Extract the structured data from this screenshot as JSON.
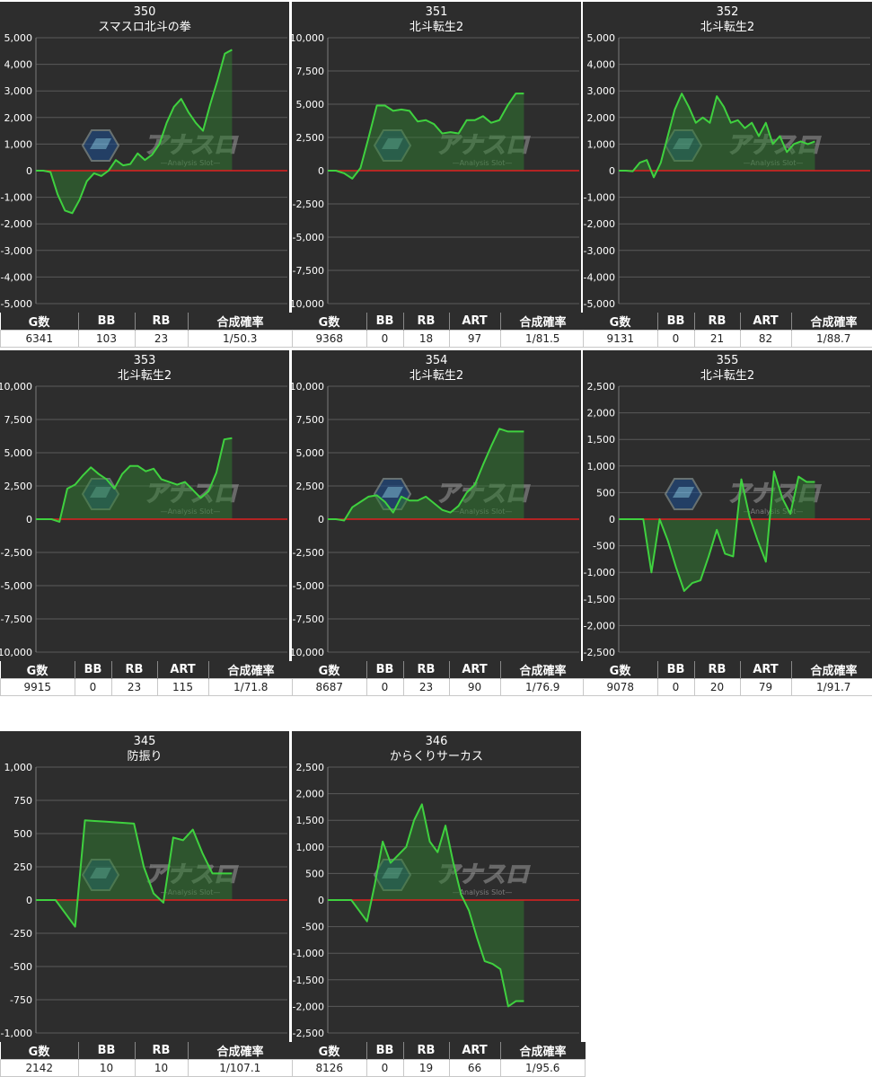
{
  "colors": {
    "background": "#2d2d2d",
    "line": "#3fd13f",
    "area": "#2f7d2f",
    "zero_line": "#e02020",
    "grid": "#5a5a5a",
    "text": "#ffffff"
  },
  "watermark": {
    "text": "アナスロ",
    "subtext": "—Analysis Slot—"
  },
  "chart_data": [
    {
      "type": "area",
      "number": "350",
      "title": "スマスロ北斗の拳",
      "ylim": [
        -5000,
        5000
      ],
      "ticks": [
        "5,000",
        "4,000",
        "3,000",
        "2,000",
        "1,000",
        "0",
        "-1,000",
        "-2,000",
        "-3,000",
        "-4,000",
        "-5,000"
      ],
      "values": [
        0,
        0,
        -50,
        -900,
        -1500,
        -1600,
        -1100,
        -400,
        -100,
        -200,
        0,
        400,
        200,
        250,
        650,
        400,
        600,
        1000,
        1800,
        2400,
        2700,
        2200,
        1800,
        1500,
        2500,
        3400,
        4400,
        4550
      ],
      "stats_headers": [
        "G数",
        "BB",
        "RB",
        "合成確率"
      ],
      "stats_values": [
        "6341",
        "103",
        "23",
        "1/50.3"
      ]
    },
    {
      "type": "area",
      "number": "351",
      "title": "北斗転生2",
      "ylim": [
        -10000,
        10000
      ],
      "ticks": [
        "10,000",
        "7,500",
        "5,000",
        "2,500",
        "0",
        "-2,500",
        "-5,000",
        "-7,500",
        "-10,000"
      ],
      "values": [
        0,
        0,
        -200,
        -600,
        200,
        2500,
        4900,
        4900,
        4500,
        4600,
        4500,
        3700,
        3800,
        3500,
        2800,
        2900,
        2800,
        3800,
        3800,
        4100,
        3600,
        3800,
        4900,
        5800,
        5800
      ],
      "stats_headers": [
        "G数",
        "BB",
        "RB",
        "ART",
        "合成確率"
      ],
      "stats_values": [
        "9368",
        "0",
        "18",
        "97",
        "1/81.5"
      ]
    },
    {
      "type": "area",
      "number": "352",
      "title": "北斗転生2",
      "ylim": [
        -5000,
        5000
      ],
      "ticks": [
        "5,000",
        "4,000",
        "3,000",
        "2,000",
        "1,000",
        "0",
        "-1,000",
        "-2,000",
        "-3,000",
        "-4,000",
        "-5,000"
      ],
      "values": [
        0,
        0,
        -20,
        300,
        400,
        -250,
        300,
        1300,
        2300,
        2900,
        2400,
        1800,
        2000,
        1800,
        2800,
        2400,
        1800,
        1900,
        1600,
        1800,
        1300,
        1800,
        1000,
        1300,
        700,
        1000,
        1100,
        1000,
        1100
      ],
      "stats_headers": [
        "G数",
        "BB",
        "RB",
        "ART",
        "合成確率"
      ],
      "stats_values": [
        "9131",
        "0",
        "21",
        "82",
        "1/88.7"
      ]
    },
    {
      "type": "area",
      "number": "353",
      "title": "北斗転生2",
      "ylim": [
        -10000,
        10000
      ],
      "ticks": [
        "10,000",
        "7,500",
        "5,000",
        "2,500",
        "0",
        "-2,500",
        "-5,000",
        "-7,500",
        "-10,000"
      ],
      "values": [
        0,
        0,
        0,
        -200,
        2300,
        2600,
        3300,
        3900,
        3400,
        3000,
        2300,
        3400,
        4000,
        4000,
        3600,
        3800,
        3000,
        2800,
        2600,
        2800,
        2200,
        1600,
        2100,
        3500,
        6000,
        6100
      ],
      "stats_headers": [
        "G数",
        "BB",
        "RB",
        "ART",
        "合成確率"
      ],
      "stats_values": [
        "9915",
        "0",
        "23",
        "115",
        "1/71.8"
      ]
    },
    {
      "type": "area",
      "number": "354",
      "title": "北斗転生2",
      "ylim": [
        -10000,
        10000
      ],
      "ticks": [
        "10,000",
        "7,500",
        "5,000",
        "2,500",
        "0",
        "-2,500",
        "-5,000",
        "-7,500",
        "-10,000"
      ],
      "values": [
        0,
        0,
        -100,
        900,
        1300,
        1700,
        1800,
        1300,
        500,
        1700,
        1400,
        1400,
        1700,
        1200,
        700,
        500,
        1000,
        2000,
        2600,
        4100,
        5500,
        6800,
        6600,
        6600,
        6600
      ],
      "stats_headers": [
        "G数",
        "BB",
        "RB",
        "ART",
        "合成確率"
      ],
      "stats_values": [
        "8687",
        "0",
        "23",
        "90",
        "1/76.9"
      ]
    },
    {
      "type": "area",
      "number": "355",
      "title": "北斗転生2",
      "ylim": [
        -2500,
        2500
      ],
      "ticks": [
        "2,500",
        "2,000",
        "1,500",
        "1,000",
        "500",
        "0",
        "-500",
        "-1,000",
        "-1,500",
        "-2,000",
        "-2,500"
      ],
      "values": [
        0,
        0,
        0,
        0,
        -1000,
        0,
        -400,
        -900,
        -1350,
        -1200,
        -1150,
        -700,
        -200,
        -650,
        -700,
        750,
        50,
        -400,
        -800,
        900,
        400,
        100,
        800,
        700,
        700
      ],
      "stats_headers": [
        "G数",
        "BB",
        "RB",
        "ART",
        "合成確率"
      ],
      "stats_values": [
        "9078",
        "0",
        "20",
        "79",
        "1/91.7"
      ]
    },
    {
      "type": "area",
      "number": "345",
      "title": "防振り",
      "ylim": [
        -1000,
        1000
      ],
      "ticks": [
        "1,000",
        "750",
        "500",
        "250",
        "0",
        "-250",
        "-500",
        "-750",
        "-1,000"
      ],
      "values": [
        0,
        0,
        0,
        -100,
        -200,
        600,
        595,
        590,
        585,
        580,
        575,
        250,
        50,
        -20,
        470,
        450,
        530,
        350,
        200,
        200,
        200
      ],
      "stats_headers": [
        "G数",
        "BB",
        "RB",
        "合成確率"
      ],
      "stats_values": [
        "2142",
        "10",
        "10",
        "1/107.1"
      ]
    },
    {
      "type": "area",
      "number": "346",
      "title": "からくりサーカス",
      "ylim": [
        -2500,
        2500
      ],
      "ticks": [
        "2,500",
        "2,000",
        "1,500",
        "1,000",
        "500",
        "0",
        "-500",
        "-1,000",
        "-1,500",
        "-2,000",
        "-2,500"
      ],
      "values": [
        0,
        0,
        0,
        0,
        -200,
        -400,
        300,
        1100,
        700,
        850,
        1000,
        1500,
        1800,
        1100,
        900,
        1400,
        700,
        100,
        -200,
        -700,
        -1150,
        -1200,
        -1300,
        -2000,
        -1900,
        -1900
      ],
      "stats_headers": [
        "G数",
        "BB",
        "RB",
        "ART",
        "合成確率"
      ],
      "stats_values": [
        "8126",
        "0",
        "19",
        "66",
        "1/95.6"
      ]
    }
  ]
}
